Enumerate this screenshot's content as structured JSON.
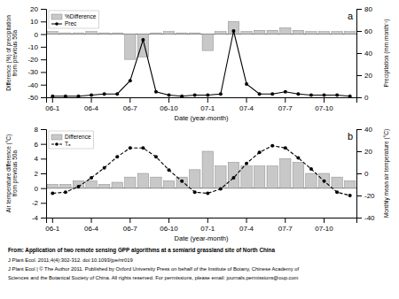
{
  "chart_data": [
    {
      "type": "bar",
      "x_label": "Date (year-month)",
      "y_label": "Difference (%) of precipitation\nfrom previous 50a",
      "y2_label": "Precipitation (mm month⁻¹)",
      "categories": [
        "06-1",
        null,
        null,
        "06-4",
        null,
        null,
        "06-7",
        null,
        null,
        "06-10",
        null,
        null,
        "07-1",
        null,
        null,
        "07-4",
        null,
        null,
        "07-7",
        null,
        null,
        "07-10",
        null,
        null
      ],
      "series": [
        {
          "name": "%Difference",
          "type": "bar",
          "color": "#c8c8c8",
          "values": [
            2,
            1,
            1,
            2,
            1,
            1,
            -20,
            -18,
            1,
            2,
            1,
            1,
            -13,
            2,
            10,
            2,
            3,
            3,
            5,
            3,
            2,
            2,
            2,
            2
          ]
        },
        {
          "name": "Prec",
          "type": "line",
          "axis": "y2",
          "color": "black",
          "marker": "circle",
          "line_style": "solid",
          "values": [
            1,
            1,
            1,
            2,
            3,
            3,
            15,
            52,
            5,
            2,
            1,
            2,
            2,
            3,
            60,
            12,
            3,
            3,
            5,
            3,
            2,
            2,
            2,
            1
          ]
        }
      ],
      "ylim": [
        -50,
        20
      ],
      "yticks": [
        -50,
        -40,
        -30,
        -20,
        -10,
        0,
        10,
        20
      ],
      "y2lim": [
        0,
        80
      ],
      "y2ticks": [
        0,
        20,
        40,
        60,
        80
      ],
      "grid": false,
      "legend": "upper left",
      "annotations": [
        "a"
      ]
    },
    {
      "type": "bar",
      "x_label": "Date (year-month)",
      "y_label": "Air temperature difference (°C)\nfrom previous 50a",
      "y2_label": "Monthly mean air temperature (°C)",
      "categories": [
        "06-1",
        null,
        null,
        "06-4",
        null,
        null,
        "06-7",
        null,
        null,
        "06-10",
        null,
        null,
        "07-1",
        null,
        null,
        "07-4",
        null,
        null,
        "07-7",
        null,
        null,
        "07-10",
        null,
        null
      ],
      "series": [
        {
          "name": "Difference",
          "type": "bar",
          "color": "#c8c8c8",
          "values": [
            0.5,
            0.5,
            1.0,
            1.0,
            0.5,
            0.8,
            1.5,
            2.0,
            1.5,
            1.0,
            1.5,
            2.5,
            5.0,
            3.0,
            3.5,
            3.0,
            3.0,
            3.0,
            4.0,
            3.5,
            2.0,
            2.0,
            1.5,
            1.0
          ]
        },
        {
          "name": "Tₐ",
          "type": "line",
          "axis": "y2",
          "color": "black",
          "marker": "circle",
          "line_style": "dashed",
          "values": [
            -18,
            -17,
            -12,
            -4,
            5,
            15,
            23,
            23,
            15,
            3,
            -7,
            -17,
            -18,
            -14,
            -4,
            9,
            19,
            25,
            23,
            14,
            4,
            -7,
            -17,
            -20
          ]
        }
      ],
      "ylim": [
        -4,
        8
      ],
      "yticks": [
        -4,
        -2,
        0,
        2,
        4,
        6,
        8
      ],
      "y2lim": [
        -40,
        40
      ],
      "y2ticks": [
        -40,
        -20,
        0,
        20,
        40
      ],
      "grid": false,
      "legend": "upper left",
      "annotations": [
        "b",
        "From: Application of two remote sensing GPP algorithms at a semiarid grassland site of North China",
        "J Plant Ecol. 2011;4(4):302-312. doi:10.1093/jpe/rtr019",
        "J Plant Ecol | © The Author 2011. Published by Oxford University Press on behalf of the Institute of Botany, Chinese Academy of",
        "Sciences and the Botanical Society of China. All rights reserved. For permissions, please email: journals.permissions@oup.com"
      ]
    }
  ]
}
